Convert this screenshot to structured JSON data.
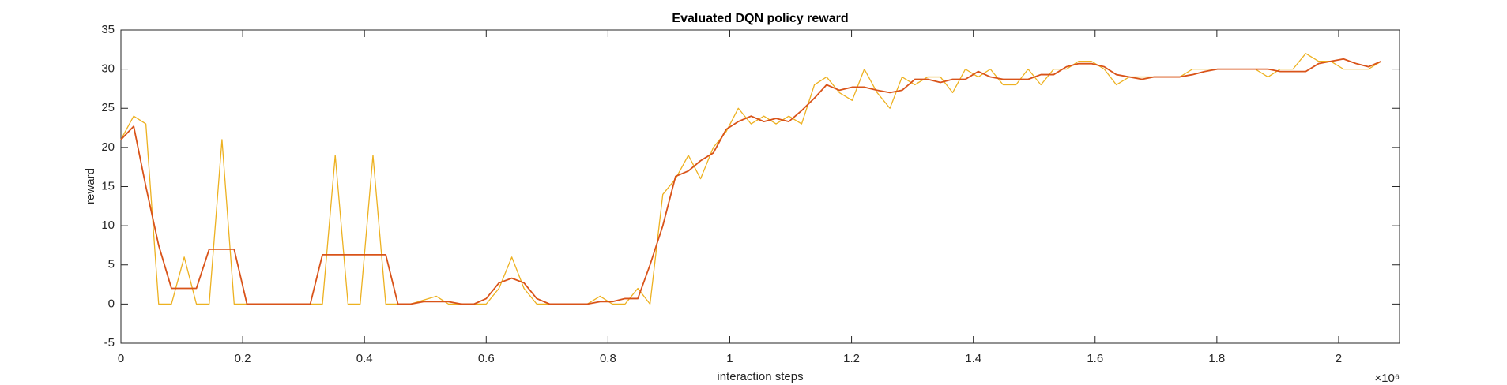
{
  "chart_data": {
    "type": "line",
    "title": "Evaluated DQN policy reward",
    "x_label": "interaction steps",
    "y_label": "reward",
    "x_exponent": "×10⁶",
    "x": [
      0,
      0.021,
      0.041,
      0.062,
      0.083,
      0.104,
      0.124,
      0.145,
      0.166,
      0.186,
      0.207,
      0.228,
      0.248,
      0.269,
      0.29,
      0.311,
      0.331,
      0.352,
      0.373,
      0.393,
      0.414,
      0.435,
      0.455,
      0.476,
      0.497,
      0.518,
      0.538,
      0.559,
      0.58,
      0.6,
      0.621,
      0.642,
      0.662,
      0.683,
      0.704,
      0.725,
      0.745,
      0.766,
      0.787,
      0.807,
      0.828,
      0.849,
      0.869,
      0.89,
      0.911,
      0.932,
      0.952,
      0.973,
      0.994,
      1.014,
      1.035,
      1.056,
      1.076,
      1.097,
      1.118,
      1.139,
      1.159,
      1.18,
      1.201,
      1.221,
      1.242,
      1.263,
      1.283,
      1.304,
      1.325,
      1.346,
      1.366,
      1.387,
      1.408,
      1.428,
      1.449,
      1.47,
      1.49,
      1.511,
      1.532,
      1.553,
      1.573,
      1.594,
      1.615,
      1.635,
      1.656,
      1.677,
      1.697,
      1.718,
      1.739,
      1.76,
      1.78,
      1.801,
      1.822,
      1.842,
      1.863,
      1.884,
      1.904,
      1.925,
      1.946,
      1.967,
      1.987,
      2.008,
      2.029,
      2.049,
      2.07
    ],
    "series": [
      {
        "color": "#EDB120",
        "values": [
          21,
          24,
          23,
          0,
          0,
          6,
          0,
          0,
          21,
          0,
          0,
          0,
          0,
          0,
          0,
          0,
          0,
          19,
          0,
          0,
          19,
          0,
          0,
          0,
          0.5,
          1,
          0,
          0,
          0,
          0,
          2,
          6,
          2,
          0,
          0,
          0,
          0,
          0,
          1,
          0,
          0,
          2,
          0,
          14,
          16,
          19,
          16,
          20,
          22,
          25,
          23,
          24,
          23,
          24,
          23,
          28,
          29,
          27,
          26,
          30,
          27,
          25,
          29,
          28,
          29,
          29,
          27,
          30,
          29,
          30,
          28,
          28,
          30,
          28,
          30,
          30,
          31,
          31,
          30,
          28,
          29,
          29,
          29,
          29,
          29,
          30,
          30,
          30,
          30,
          30,
          30,
          29,
          30,
          30,
          32,
          31,
          31,
          30,
          30,
          30,
          31
        ]
      },
      {
        "color": "#D95319",
        "values": [
          21,
          22.7,
          15,
          7.5,
          2,
          2,
          2,
          7,
          7,
          7,
          0,
          0,
          0,
          0,
          0,
          0,
          6.3,
          6.3,
          6.3,
          6.3,
          6.3,
          6.3,
          0,
          0,
          0.3,
          0.3,
          0.3,
          0,
          0,
          0.7,
          2.7,
          3.3,
          2.7,
          0.7,
          0,
          0,
          0,
          0,
          0.3,
          0.3,
          0.7,
          0.7,
          5,
          10,
          16.3,
          17,
          18.3,
          19.3,
          22.3,
          23.3,
          24,
          23.3,
          23.7,
          23.3,
          24.7,
          26.3,
          28,
          27.3,
          27.7,
          27.7,
          27.3,
          27,
          27.3,
          28.7,
          28.7,
          28.3,
          28.7,
          28.7,
          29.7,
          29,
          28.7,
          28.7,
          28.7,
          29.3,
          29.3,
          30.3,
          30.7,
          30.7,
          30.3,
          29.3,
          29,
          28.7,
          29,
          29,
          29,
          29.3,
          29.7,
          30,
          30,
          30,
          30,
          30,
          29.7,
          29.7,
          29.7,
          30.7,
          31,
          31.3,
          30.7,
          30.3,
          31
        ]
      }
    ],
    "xlim": [
      0,
      2.1
    ],
    "xticks": [
      0,
      0.2,
      0.4,
      0.6,
      0.8,
      1,
      1.2,
      1.4,
      1.6,
      1.8,
      2
    ],
    "ylim": [
      -5,
      35
    ],
    "yticks": [
      -5,
      0,
      5,
      10,
      15,
      20,
      25,
      30,
      35
    ],
    "grid": false
  }
}
